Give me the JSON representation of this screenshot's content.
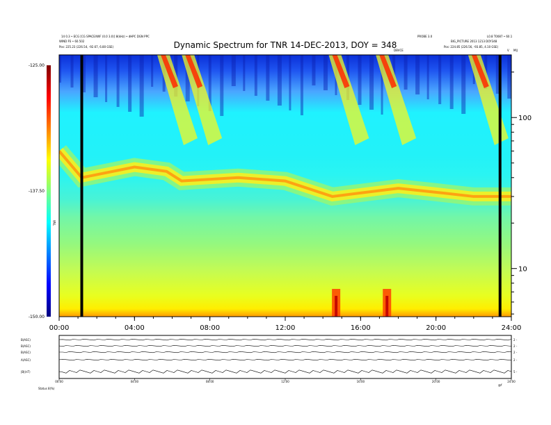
{
  "header": {
    "title": "Dynamic Spectrum for TNR 14-DEC-2013, DOY = 348",
    "left_line1": "14 0.3 • ECG [CG SPACE/WIF (0.0 3.0)] 8(kHz) • dHPC DGN PPC",
    "left_line2": "WIND P3 • 60.502",
    "left_pos": "Pos:  225.23 (226.54, -92.67, 6.80 GSE)",
    "right_line1a": "PROBE 3.0",
    "right_line1b": "L0.8 T0087 • 60.1",
    "right_line2": "BIG_PICTURE  2013 1213 DOY348",
    "right_pos": "Pos:  224.85 (226.56, -93.85, 4.10 GSE)",
    "center_small": "DBVCE",
    "corner_v": "V",
    "corner_m": "MIJ"
  },
  "chart_data": [
    {
      "type": "heatmap",
      "title": "Dynamic Spectrum for TNR 14-DEC-2013, DOY = 348",
      "x_ticks": [
        "00:00",
        "04:00",
        "08:00",
        "12:00",
        "16:00",
        "20:00",
        "24:00"
      ],
      "x_range_hours": [
        0,
        24
      ],
      "y_scale": "log",
      "y_range": [
        4.8,
        260
      ],
      "y_ticks": [
        "10",
        "100"
      ],
      "colorbar": {
        "ticks": [
          "-125.00",
          "-137.50",
          "-150.00"
        ],
        "range": [
          -150,
          -125
        ],
        "label": "TNR",
        "colors": [
          "#00007f",
          "#0000ff",
          "#007fff",
          "#00ffff",
          "#7fff7f",
          "#ffff00",
          "#ff7f00",
          "#ff0000",
          "#7f0000"
        ]
      },
      "grid": false,
      "features": {
        "data_gap_hours": [
          1.2,
          23.4
        ],
        "plasma_line_freq": [
          [
            0,
            60
          ],
          [
            1.2,
            40
          ],
          [
            4,
            47
          ],
          [
            5.7,
            44
          ],
          [
            6.5,
            38
          ],
          [
            9.5,
            40
          ],
          [
            12,
            38
          ],
          [
            14.5,
            30
          ],
          [
            18,
            34
          ],
          [
            20,
            32
          ],
          [
            22,
            30
          ],
          [
            24,
            30
          ]
        ],
        "radio_bursts_hours": [
          5.5,
          6.8,
          14.6,
          17.1,
          22.0
        ],
        "low_freq_enhancements_hours": [
          14.7,
          17.4
        ]
      }
    },
    {
      "type": "line",
      "panel": "ancillary",
      "x_ticks": [
        "00:00",
        "04:00",
        "08:00",
        "12:00",
        "16:00",
        "20:00",
        "24:00"
      ],
      "rows": [
        {
          "label": "B(ASC)",
          "right_tick": "2 -"
        },
        {
          "label": "B(ASC)",
          "right_tick": "2 -"
        },
        {
          "label": "B(ASC)",
          "right_tick": "2 -"
        },
        {
          "label": "A(ASC)",
          "right_tick": "2 -"
        },
        {
          "label": "|B|(nT)",
          "right_tick": "5 -"
        }
      ],
      "footer_left": "Status  8(%)",
      "footer_right": "@f"
    }
  ]
}
